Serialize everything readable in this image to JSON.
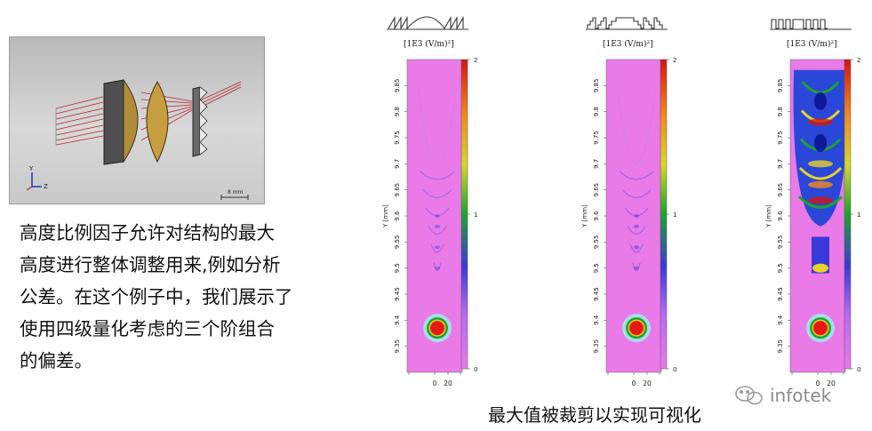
{
  "description": {
    "lines": [
      "高度比例因子允许对结构的最大",
      "高度进行整体调整用来,例如分析",
      "公差。在这个例子中，我们展示了",
      "使用四级量化考虑的三个阶组合",
      "的偏差。"
    ]
  },
  "caption": "最大值被裁剪以实现可视化",
  "logo_text": "infotek",
  "viewport": {
    "scale_label": "8 mm",
    "axis_y": "Y",
    "axis_z": "Z"
  },
  "colors": {
    "background": "#ffffff",
    "plot_bg": "#e97ae8",
    "hotspot": "#e51a12"
  },
  "chart_data": [
    {
      "type": "heatmap",
      "unit_label": "[1E3 (V/m)²]",
      "profile_icon": "sawtooth-with-arc-profile-icon",
      "ylabel": "Y [mm]",
      "yticks": [
        "9.35",
        "9.4",
        "9.45",
        "9.5",
        "9.55",
        "9.6",
        "9.65",
        "9.7",
        "9.75",
        "9.8",
        "9.85"
      ],
      "ylim": [
        9.3,
        9.9
      ],
      "xticks": [
        "0",
        "20"
      ],
      "colorbar": {
        "ticks": [
          "0",
          "1",
          "2"
        ],
        "range": [
          0,
          2
        ]
      },
      "focus_y": 9.385,
      "pattern_intensity": 0.25
    },
    {
      "type": "heatmap",
      "unit_label": "[1E3 (V/m)²]",
      "profile_icon": "four-level-staircase-profile-icon",
      "ylabel": "Y [mm]",
      "yticks": [
        "9.35",
        "9.4",
        "9.45",
        "9.5",
        "9.55",
        "9.6",
        "9.65",
        "9.7",
        "9.75",
        "9.8",
        "9.85"
      ],
      "ylim": [
        9.3,
        9.9
      ],
      "xticks": [
        "0",
        "20"
      ],
      "colorbar": {
        "ticks": [
          "0",
          "1",
          "2"
        ],
        "range": [
          0,
          2
        ]
      },
      "focus_y": 9.385,
      "pattern_intensity": 0.35
    },
    {
      "type": "heatmap",
      "unit_label": "[1E3 (V/m)²]",
      "profile_icon": "binary-step-profile-icon",
      "ylabel": "Y [mm]",
      "yticks": [
        "9.35",
        "9.4",
        "9.45",
        "9.5",
        "9.55",
        "9.6",
        "9.65",
        "9.7",
        "9.75",
        "9.8",
        "9.85"
      ],
      "ylim": [
        9.3,
        9.9
      ],
      "xticks": [
        "0",
        "20"
      ],
      "colorbar": {
        "ticks": [
          "0",
          "1",
          "2"
        ],
        "range": [
          0,
          2
        ]
      },
      "focus_y": 9.385,
      "pattern_intensity": 1.0
    }
  ]
}
